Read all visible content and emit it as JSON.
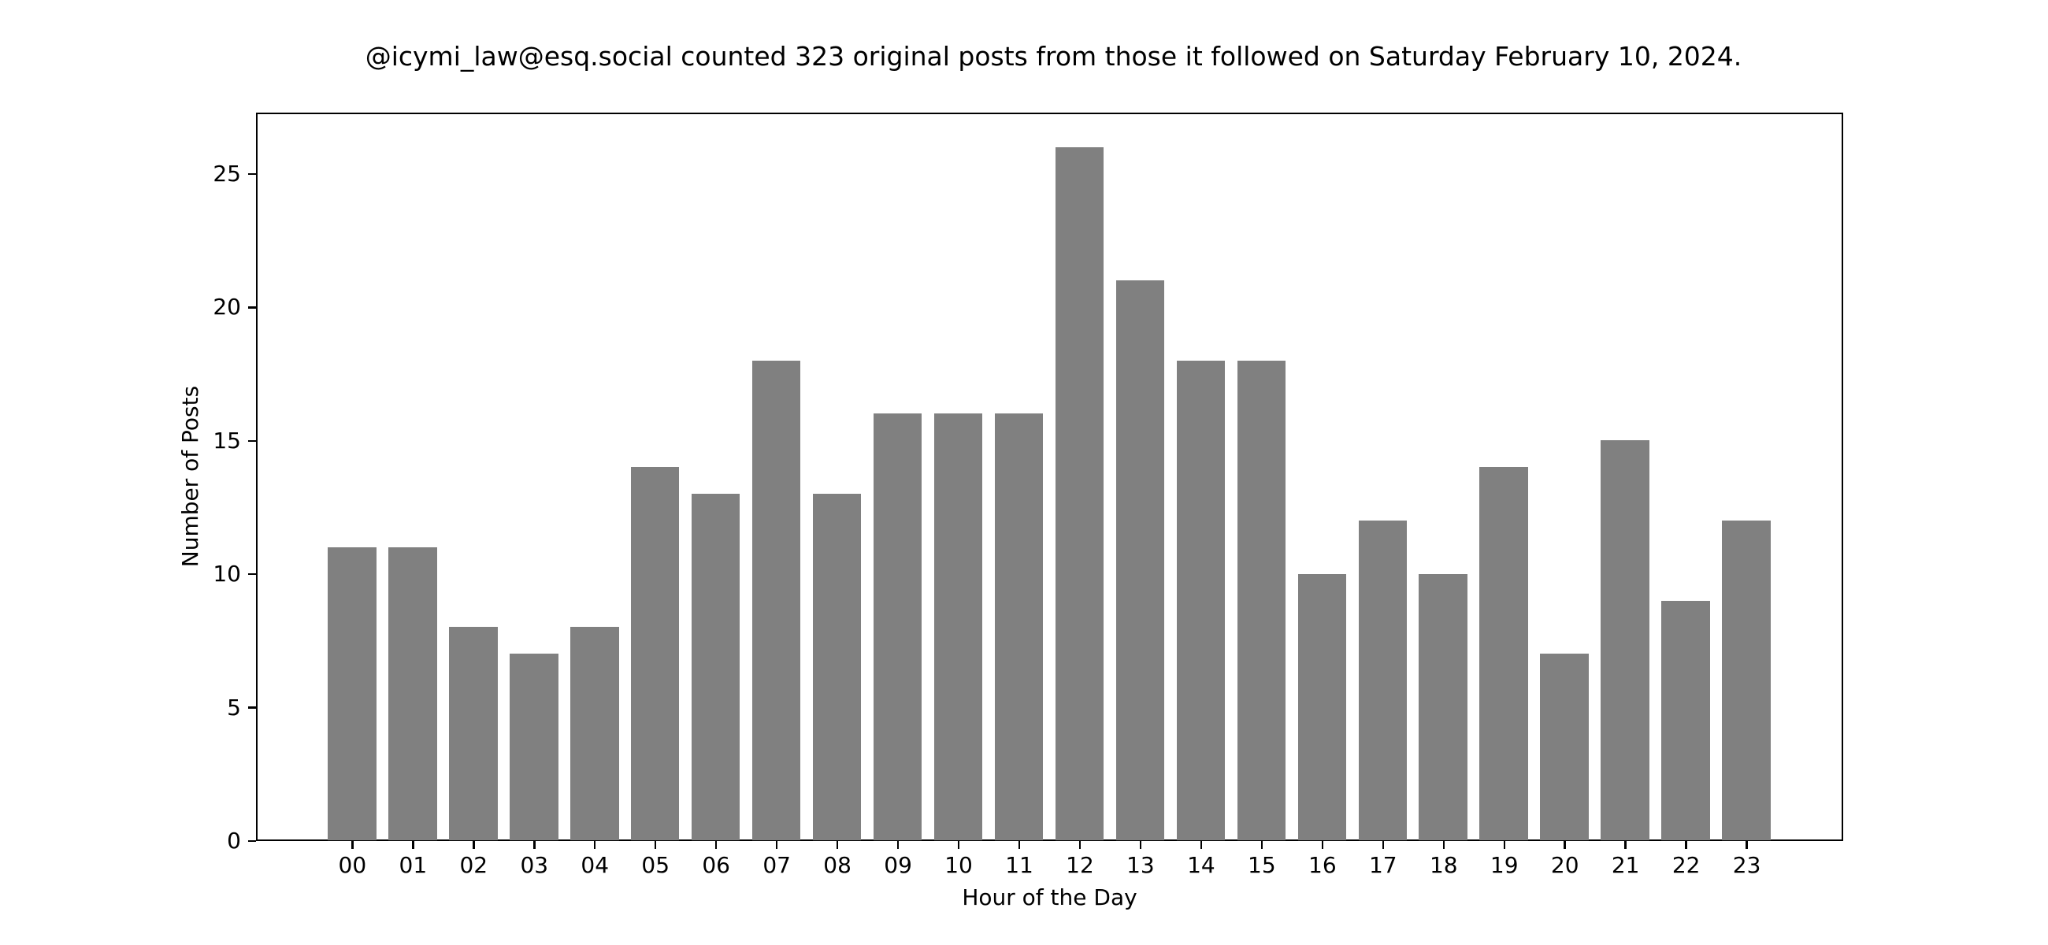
{
  "chart_data": {
    "type": "bar",
    "title": "@icymi_law@esq.social counted 323 original posts from those it followed on Saturday February 10, 2024.",
    "xlabel": "Hour of the Day",
    "ylabel": "Number of Posts",
    "categories": [
      "00",
      "01",
      "02",
      "03",
      "04",
      "05",
      "06",
      "07",
      "08",
      "09",
      "10",
      "11",
      "12",
      "13",
      "14",
      "15",
      "16",
      "17",
      "18",
      "19",
      "20",
      "21",
      "22",
      "23"
    ],
    "values": [
      11,
      11,
      8,
      7,
      8,
      14,
      13,
      18,
      13,
      16,
      16,
      16,
      26,
      21,
      18,
      18,
      10,
      12,
      10,
      14,
      7,
      15,
      9,
      12
    ],
    "ylim": [
      0,
      27.3
    ],
    "yticks": [
      0,
      5,
      10,
      15,
      20,
      25
    ],
    "grid": false,
    "legend": null,
    "bar_color": "#808080"
  }
}
